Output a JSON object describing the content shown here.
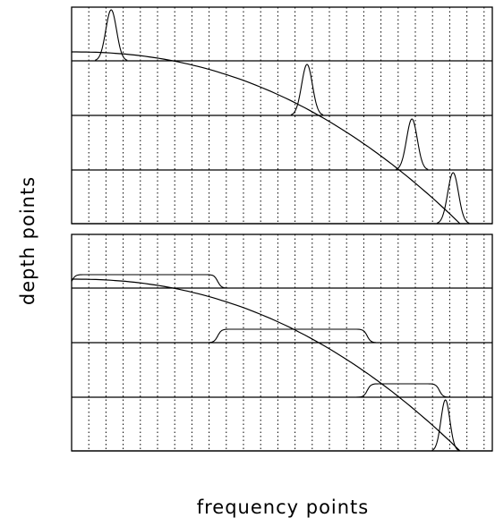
{
  "axes": {
    "xlabel": "frequency points",
    "ylabel": "depth points"
  },
  "panels": [
    {
      "id": "top",
      "vertical_gridlines": 24,
      "depth_levels": 4,
      "trace_shape": "narrow-peak",
      "trace_centers": [
        2.3,
        13.7,
        19.8,
        22.2
      ]
    },
    {
      "id": "bottom",
      "vertical_gridlines": 24,
      "depth_levels": 4,
      "trace_shape": "plateau",
      "plateau_ranges": [
        [
          0,
          8.5
        ],
        [
          8.5,
          17.2
        ],
        [
          17.2,
          21.4
        ],
        [
          21.4,
          22.1
        ]
      ]
    }
  ]
}
